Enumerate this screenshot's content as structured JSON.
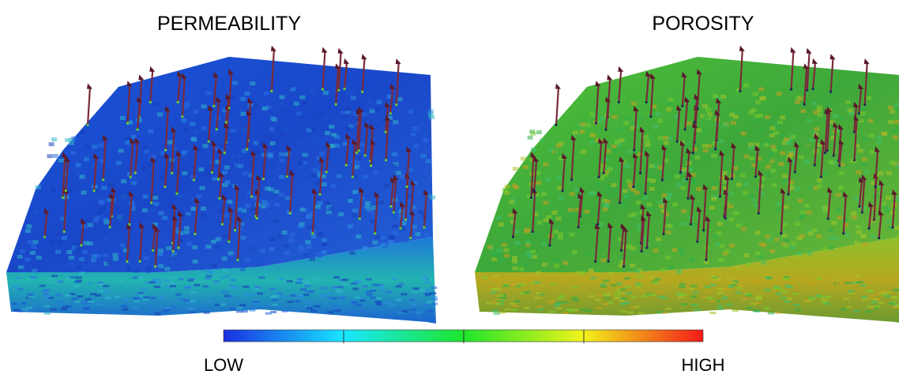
{
  "panels": [
    {
      "title": "PERMEABILITY"
    },
    {
      "title": "POROSITY"
    }
  ],
  "colorbar": {
    "low": "LOW",
    "high": "HIGH"
  }
}
